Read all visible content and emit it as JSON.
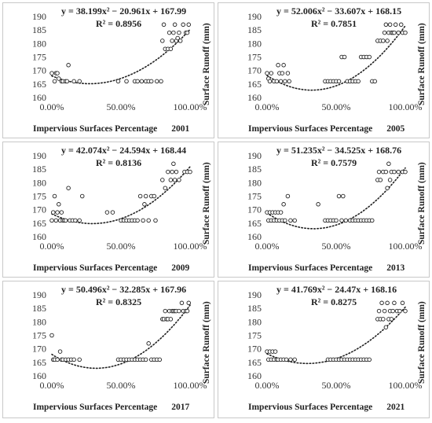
{
  "chart_data": [
    {
      "type": "scatter",
      "year": "2001",
      "equation": "y = 38.199x² − 20.961x + 167.99",
      "r2": "R² = 0.8956",
      "xlabel": "Impervious Surfaces Percentage",
      "ylabel": "Surface Runoff  (mm)",
      "x_ticks": [
        "0.00%",
        "50.00%",
        "100.00%"
      ],
      "y_ticks": [
        "160",
        "165",
        "170",
        "175",
        "180",
        "185",
        "190"
      ],
      "xlim": [
        0,
        1
      ],
      "ylim": [
        160,
        190
      ],
      "trendline": {
        "type": "polynomial",
        "a": 38.199,
        "b": -20.961,
        "c": 167.99,
        "style": "dotted"
      },
      "points": [
        [
          0.0,
          169
        ],
        [
          0.02,
          166
        ],
        [
          0.03,
          169
        ],
        [
          0.04,
          169
        ],
        [
          0.05,
          167
        ],
        [
          0.07,
          166
        ],
        [
          0.08,
          166
        ],
        [
          0.1,
          166
        ],
        [
          0.11,
          166
        ],
        [
          0.12,
          172
        ],
        [
          0.16,
          166
        ],
        [
          0.2,
          166
        ],
        [
          0.48,
          166
        ],
        [
          0.54,
          166
        ],
        [
          0.6,
          166
        ],
        [
          0.62,
          166
        ],
        [
          0.65,
          166
        ],
        [
          0.68,
          166
        ],
        [
          0.7,
          166
        ],
        [
          0.72,
          166
        ],
        [
          0.76,
          166
        ],
        [
          0.79,
          166
        ],
        [
          0.8,
          181
        ],
        [
          0.81,
          187
        ],
        [
          0.82,
          178
        ],
        [
          0.84,
          178
        ],
        [
          0.85,
          184
        ],
        [
          0.86,
          178
        ],
        [
          0.87,
          181
        ],
        [
          0.88,
          184
        ],
        [
          0.89,
          187
        ],
        [
          0.9,
          181
        ],
        [
          0.91,
          182
        ],
        [
          0.92,
          184
        ],
        [
          0.93,
          181
        ],
        [
          0.95,
          187
        ],
        [
          0.97,
          184
        ],
        [
          0.98,
          184
        ],
        [
          0.99,
          187
        ]
      ]
    },
    {
      "type": "scatter",
      "year": "2005",
      "equation": "y = 52.006x² − 33.607x + 168.15",
      "r2": "R² = 0.7851",
      "xlabel": "Impervious Surfaces Percentage",
      "ylabel": "Surface Runoff  (mm)",
      "x_ticks": [
        "0.00%",
        "50.00%",
        "100.00%"
      ],
      "y_ticks": [
        "160",
        "165",
        "170",
        "175",
        "180",
        "185",
        "190"
      ],
      "xlim": [
        0,
        1
      ],
      "ylim": [
        160,
        190
      ],
      "trendline": {
        "type": "polynomial",
        "a": 52.006,
        "b": -33.607,
        "c": 168.15,
        "style": "dotted"
      },
      "points": [
        [
          0.0,
          169
        ],
        [
          0.01,
          167
        ],
        [
          0.02,
          166
        ],
        [
          0.03,
          169
        ],
        [
          0.05,
          166
        ],
        [
          0.07,
          166
        ],
        [
          0.08,
          172
        ],
        [
          0.09,
          169
        ],
        [
          0.1,
          166
        ],
        [
          0.11,
          169
        ],
        [
          0.12,
          172
        ],
        [
          0.13,
          166
        ],
        [
          0.15,
          169
        ],
        [
          0.16,
          166
        ],
        [
          0.42,
          166
        ],
        [
          0.44,
          166
        ],
        [
          0.46,
          166
        ],
        [
          0.48,
          166
        ],
        [
          0.5,
          166
        ],
        [
          0.52,
          166
        ],
        [
          0.54,
          175
        ],
        [
          0.56,
          175
        ],
        [
          0.58,
          166
        ],
        [
          0.6,
          166
        ],
        [
          0.62,
          166
        ],
        [
          0.64,
          166
        ],
        [
          0.66,
          166
        ],
        [
          0.68,
          175
        ],
        [
          0.7,
          175
        ],
        [
          0.72,
          175
        ],
        [
          0.74,
          175
        ],
        [
          0.76,
          166
        ],
        [
          0.78,
          166
        ],
        [
          0.8,
          181
        ],
        [
          0.82,
          181
        ],
        [
          0.84,
          181
        ],
        [
          0.85,
          184
        ],
        [
          0.86,
          187
        ],
        [
          0.87,
          181
        ],
        [
          0.88,
          184
        ],
        [
          0.89,
          187
        ],
        [
          0.9,
          184
        ],
        [
          0.91,
          184
        ],
        [
          0.92,
          184
        ],
        [
          0.93,
          187
        ],
        [
          0.95,
          184
        ],
        [
          0.97,
          187
        ],
        [
          0.98,
          184
        ],
        [
          1.0,
          184
        ]
      ]
    },
    {
      "type": "scatter",
      "year": "2009",
      "equation": "y = 42.074x² − 24.594x + 168.44",
      "r2": "R² = 0.8136",
      "xlabel": "Impervious Surfaces Percentage",
      "ylabel": "Surface Runoff  (mm)",
      "x_ticks": [
        "0.00%",
        "50.00%",
        "100.00%"
      ],
      "y_ticks": [
        "160",
        "165",
        "170",
        "175",
        "180",
        "185",
        "190"
      ],
      "xlim": [
        0,
        1
      ],
      "ylim": [
        160,
        190
      ],
      "trendline": {
        "type": "polynomial",
        "a": 42.074,
        "b": -24.594,
        "c": 168.44,
        "style": "dotted"
      },
      "points": [
        [
          0.0,
          166
        ],
        [
          0.01,
          169
        ],
        [
          0.02,
          175
        ],
        [
          0.03,
          166
        ],
        [
          0.04,
          169
        ],
        [
          0.05,
          172
        ],
        [
          0.06,
          166
        ],
        [
          0.07,
          169
        ],
        [
          0.08,
          166
        ],
        [
          0.09,
          166
        ],
        [
          0.1,
          166
        ],
        [
          0.12,
          178
        ],
        [
          0.13,
          166
        ],
        [
          0.15,
          166
        ],
        [
          0.17,
          166
        ],
        [
          0.2,
          166
        ],
        [
          0.22,
          175
        ],
        [
          0.4,
          169
        ],
        [
          0.44,
          169
        ],
        [
          0.5,
          166
        ],
        [
          0.52,
          166
        ],
        [
          0.54,
          166
        ],
        [
          0.56,
          166
        ],
        [
          0.58,
          166
        ],
        [
          0.6,
          166
        ],
        [
          0.62,
          166
        ],
        [
          0.64,
          175
        ],
        [
          0.66,
          166
        ],
        [
          0.67,
          172
        ],
        [
          0.68,
          175
        ],
        [
          0.7,
          166
        ],
        [
          0.72,
          175
        ],
        [
          0.74,
          175
        ],
        [
          0.75,
          166
        ],
        [
          0.8,
          181
        ],
        [
          0.82,
          178
        ],
        [
          0.84,
          184
        ],
        [
          0.86,
          181
        ],
        [
          0.87,
          184
        ],
        [
          0.88,
          187
        ],
        [
          0.89,
          181
        ],
        [
          0.9,
          184
        ],
        [
          0.92,
          181
        ],
        [
          0.96,
          184
        ],
        [
          0.98,
          184
        ],
        [
          1.0,
          184
        ]
      ]
    },
    {
      "type": "scatter",
      "year": "2013",
      "equation": "y = 51.235x² − 34.525x + 168.76",
      "r2": "R² = 0.7579",
      "xlabel": "Impervious Surfaces Percentage",
      "ylabel": "Surface Runoff  (mm)",
      "x_ticks": [
        "0.00%",
        "50.00%",
        "100.00%"
      ],
      "y_ticks": [
        "160",
        "165",
        "170",
        "175",
        "180",
        "185",
        "190"
      ],
      "xlim": [
        0,
        1
      ],
      "ylim": [
        160,
        190
      ],
      "trendline": {
        "type": "polynomial",
        "a": 51.235,
        "b": -34.525,
        "c": 168.76,
        "style": "dotted"
      },
      "points": [
        [
          0.0,
          169
        ],
        [
          0.01,
          166
        ],
        [
          0.02,
          169
        ],
        [
          0.03,
          166
        ],
        [
          0.04,
          169
        ],
        [
          0.05,
          166
        ],
        [
          0.06,
          169
        ],
        [
          0.07,
          166
        ],
        [
          0.08,
          169
        ],
        [
          0.09,
          166
        ],
        [
          0.1,
          169
        ],
        [
          0.11,
          166
        ],
        [
          0.12,
          172
        ],
        [
          0.13,
          166
        ],
        [
          0.15,
          175
        ],
        [
          0.17,
          166
        ],
        [
          0.2,
          166
        ],
        [
          0.37,
          172
        ],
        [
          0.42,
          166
        ],
        [
          0.44,
          166
        ],
        [
          0.46,
          166
        ],
        [
          0.48,
          166
        ],
        [
          0.5,
          166
        ],
        [
          0.52,
          175
        ],
        [
          0.54,
          166
        ],
        [
          0.55,
          175
        ],
        [
          0.57,
          166
        ],
        [
          0.6,
          166
        ],
        [
          0.62,
          166
        ],
        [
          0.64,
          166
        ],
        [
          0.66,
          166
        ],
        [
          0.68,
          166
        ],
        [
          0.7,
          166
        ],
        [
          0.72,
          166
        ],
        [
          0.74,
          166
        ],
        [
          0.76,
          166
        ],
        [
          0.8,
          181
        ],
        [
          0.81,
          184
        ],
        [
          0.82,
          181
        ],
        [
          0.84,
          184
        ],
        [
          0.86,
          184
        ],
        [
          0.87,
          178
        ],
        [
          0.88,
          187
        ],
        [
          0.89,
          181
        ],
        [
          0.9,
          184
        ],
        [
          0.92,
          184
        ],
        [
          0.95,
          184
        ],
        [
          0.98,
          184
        ],
        [
          1.0,
          184
        ]
      ]
    },
    {
      "type": "scatter",
      "year": "2017",
      "equation": "y = 50.496x² − 32.285x + 167.96",
      "r2": "R² = 0.8325",
      "xlabel": "Impervious Surfaces Percentage",
      "ylabel": "Surface Runoff  (mm)",
      "x_ticks": [
        "0.00%",
        "50.00%",
        "100.00%"
      ],
      "y_ticks": [
        "160",
        "165",
        "170",
        "175",
        "180",
        "185",
        "190"
      ],
      "xlim": [
        0,
        1
      ],
      "ylim": [
        160,
        190
      ],
      "trendline": {
        "type": "polynomial",
        "a": 50.496,
        "b": -32.285,
        "c": 167.96,
        "style": "dotted"
      },
      "points": [
        [
          0.0,
          175
        ],
        [
          0.01,
          166
        ],
        [
          0.02,
          166
        ],
        [
          0.04,
          166
        ],
        [
          0.06,
          169
        ],
        [
          0.07,
          166
        ],
        [
          0.08,
          166
        ],
        [
          0.1,
          166
        ],
        [
          0.12,
          166
        ],
        [
          0.14,
          166
        ],
        [
          0.16,
          166
        ],
        [
          0.2,
          166
        ],
        [
          0.48,
          166
        ],
        [
          0.5,
          166
        ],
        [
          0.52,
          166
        ],
        [
          0.54,
          166
        ],
        [
          0.56,
          166
        ],
        [
          0.58,
          166
        ],
        [
          0.6,
          166
        ],
        [
          0.62,
          166
        ],
        [
          0.64,
          166
        ],
        [
          0.66,
          166
        ],
        [
          0.68,
          166
        ],
        [
          0.7,
          172
        ],
        [
          0.72,
          166
        ],
        [
          0.74,
          166
        ],
        [
          0.76,
          166
        ],
        [
          0.78,
          166
        ],
        [
          0.8,
          181
        ],
        [
          0.81,
          181
        ],
        [
          0.82,
          184
        ],
        [
          0.83,
          181
        ],
        [
          0.84,
          181
        ],
        [
          0.85,
          184
        ],
        [
          0.86,
          181
        ],
        [
          0.87,
          184
        ],
        [
          0.88,
          184
        ],
        [
          0.89,
          184
        ],
        [
          0.9,
          184
        ],
        [
          0.92,
          184
        ],
        [
          0.94,
          187
        ],
        [
          0.95,
          184
        ],
        [
          0.97,
          184
        ],
        [
          0.98,
          184
        ],
        [
          0.99,
          187
        ]
      ]
    },
    {
      "type": "scatter",
      "year": "2021",
      "equation": "y = 41.769x² − 24.47x + 168.16",
      "r2": "R² = 0.8275",
      "xlabel": "Impervious Surfaces Percentage",
      "ylabel": "Surface Runoff  (mm)",
      "x_ticks": [
        "0.00%",
        "50.00%",
        "100.00%"
      ],
      "y_ticks": [
        "160",
        "165",
        "170",
        "175",
        "180",
        "185",
        "190"
      ],
      "xlim": [
        0,
        1
      ],
      "ylim": [
        160,
        190
      ],
      "trendline": {
        "type": "polynomial",
        "a": 41.769,
        "b": -24.47,
        "c": 168.16,
        "style": "dotted"
      },
      "points": [
        [
          0.0,
          169
        ],
        [
          0.01,
          166
        ],
        [
          0.02,
          169
        ],
        [
          0.03,
          166
        ],
        [
          0.04,
          169
        ],
        [
          0.05,
          166
        ],
        [
          0.06,
          169
        ],
        [
          0.07,
          166
        ],
        [
          0.08,
          166
        ],
        [
          0.1,
          166
        ],
        [
          0.12,
          166
        ],
        [
          0.14,
          166
        ],
        [
          0.17,
          166
        ],
        [
          0.2,
          166
        ],
        [
          0.44,
          166
        ],
        [
          0.46,
          166
        ],
        [
          0.48,
          166
        ],
        [
          0.5,
          166
        ],
        [
          0.52,
          166
        ],
        [
          0.54,
          166
        ],
        [
          0.56,
          166
        ],
        [
          0.58,
          166
        ],
        [
          0.6,
          166
        ],
        [
          0.62,
          166
        ],
        [
          0.64,
          166
        ],
        [
          0.66,
          166
        ],
        [
          0.68,
          166
        ],
        [
          0.7,
          166
        ],
        [
          0.72,
          166
        ],
        [
          0.74,
          166
        ],
        [
          0.8,
          181
        ],
        [
          0.81,
          184
        ],
        [
          0.82,
          181
        ],
        [
          0.83,
          187
        ],
        [
          0.84,
          181
        ],
        [
          0.85,
          184
        ],
        [
          0.86,
          178
        ],
        [
          0.87,
          187
        ],
        [
          0.88,
          181
        ],
        [
          0.89,
          184
        ],
        [
          0.9,
          181
        ],
        [
          0.91,
          184
        ],
        [
          0.92,
          187
        ],
        [
          0.94,
          184
        ],
        [
          0.96,
          184
        ],
        [
          0.98,
          187
        ],
        [
          1.0,
          184
        ]
      ]
    }
  ]
}
